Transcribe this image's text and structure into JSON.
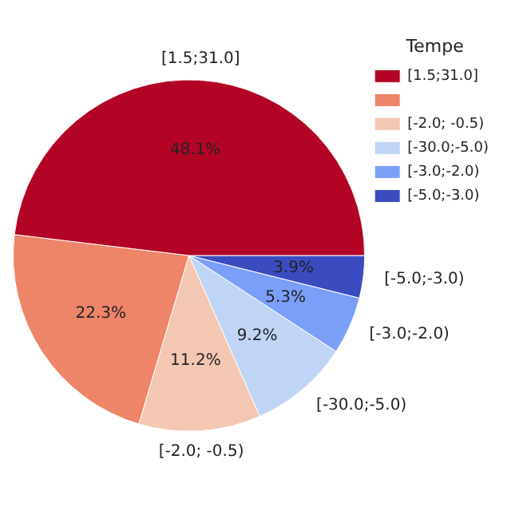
{
  "chart_data": {
    "type": "pie",
    "legend_title": "Tempe",
    "legend": "right",
    "categories": [
      "[1.5;31.0]",
      null,
      "[-2.0; -0.5)",
      "[-30.0;-5.0)",
      "[-3.0;-2.0)",
      "[-5.0;-3.0)"
    ],
    "values": [
      48.1,
      22.3,
      11.2,
      9.2,
      5.3,
      3.9
    ],
    "value_labels": [
      "48.1%",
      "22.3%",
      "11.2%",
      "9.2%",
      "5.3%",
      "3.9%"
    ],
    "colors": [
      "#b40426",
      "#ee8468",
      "#f3c7b1",
      "#c0d4f5",
      "#7b9ff9",
      "#3b4cc0"
    ]
  }
}
